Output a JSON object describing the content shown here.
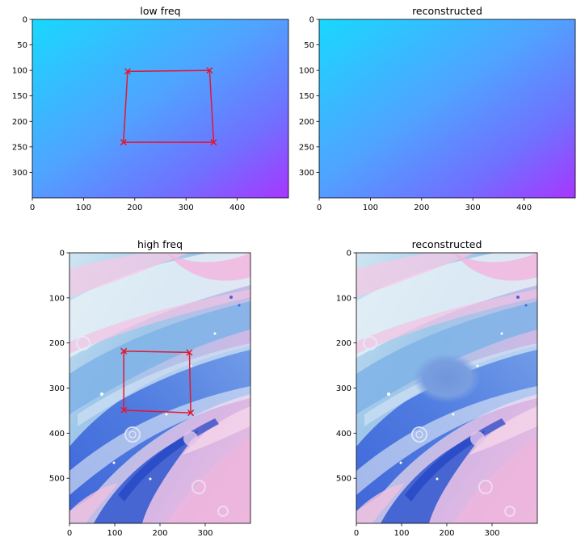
{
  "chart_data": [
    {
      "type": "heatmap",
      "title": "low freq",
      "image": "smooth cyan-to-purple gradient",
      "xlim": [
        0,
        500
      ],
      "ylim": [
        350,
        0
      ],
      "x_ticks": [
        0,
        100,
        200,
        300,
        400
      ],
      "y_ticks": [
        0,
        50,
        100,
        150,
        200,
        250,
        300
      ],
      "polygon": {
        "color": "#e3172f",
        "marker": "x",
        "points": [
          [
            186,
            102
          ],
          [
            346,
            100
          ],
          [
            354,
            241
          ],
          [
            178,
            241
          ]
        ]
      }
    },
    {
      "type": "heatmap",
      "title": "reconstructed",
      "image": "smooth cyan-to-purple gradient",
      "xlim": [
        0,
        500
      ],
      "ylim": [
        350,
        0
      ],
      "x_ticks": [
        0,
        100,
        200,
        300,
        400
      ],
      "y_ticks": [
        0,
        50,
        100,
        150,
        200,
        250,
        300
      ]
    },
    {
      "type": "heatmap",
      "title": "high freq",
      "image": "marbled blue, pink and white fluid paint texture",
      "xlim": [
        0,
        400
      ],
      "ylim": [
        600,
        0
      ],
      "x_ticks": [
        0,
        100,
        200,
        300
      ],
      "y_ticks": [
        0,
        100,
        200,
        300,
        400,
        500
      ],
      "polygon": {
        "color": "#e3172f",
        "marker": "x",
        "points": [
          [
            120,
            218
          ],
          [
            265,
            221
          ],
          [
            268,
            355
          ],
          [
            120,
            349
          ]
        ]
      }
    },
    {
      "type": "heatmap",
      "title": "reconstructed",
      "image": "marbled texture with smoothed blue patch",
      "xlim": [
        0,
        400
      ],
      "ylim": [
        600,
        0
      ],
      "x_ticks": [
        0,
        100,
        200,
        300
      ],
      "y_ticks": [
        0,
        100,
        200,
        300,
        400,
        500
      ],
      "patch": {
        "cx": 200,
        "cy": 278,
        "rx": 75,
        "ry": 55
      }
    }
  ]
}
